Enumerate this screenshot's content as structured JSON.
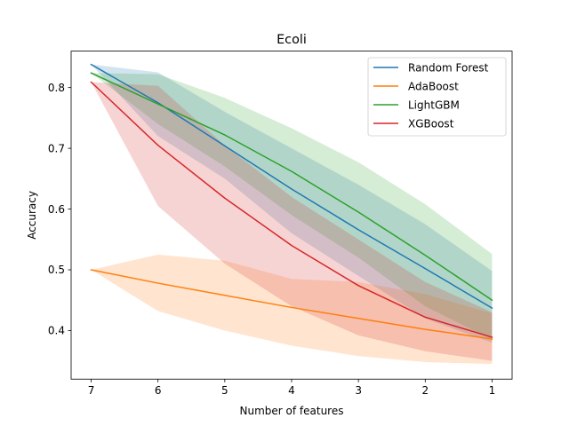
{
  "chart_data": {
    "type": "line",
    "title": "Ecoli",
    "xlabel": "Number of features",
    "ylabel": "Accuracy",
    "x": [
      7,
      6,
      5,
      4,
      3,
      2,
      1
    ],
    "x_reversed": true,
    "xticks": [
      "7",
      "6",
      "5",
      "4",
      "3",
      "2",
      "1"
    ],
    "yticks": [
      "0.4",
      "0.5",
      "0.6",
      "0.7",
      "0.8"
    ],
    "ylim": [
      0.32,
      0.86
    ],
    "grid": false,
    "legend_position": "top-right",
    "series": [
      {
        "name": "Random Forest",
        "color": "#1f77b4",
        "values": [
          0.838,
          0.775,
          0.704,
          0.633,
          0.566,
          0.502,
          0.437
        ],
        "lower": [
          0.838,
          0.72,
          0.65,
          0.56,
          0.49,
          0.42,
          0.38
        ],
        "upper": [
          0.838,
          0.825,
          0.76,
          0.7,
          0.64,
          0.575,
          0.498
        ]
      },
      {
        "name": "AdaBoost",
        "color": "#ff7f0e",
        "values": [
          0.5,
          0.478,
          0.458,
          0.438,
          0.42,
          0.402,
          0.386
        ],
        "lower": [
          0.5,
          0.432,
          0.4,
          0.375,
          0.358,
          0.348,
          0.345
        ],
        "upper": [
          0.5,
          0.525,
          0.515,
          0.485,
          0.48,
          0.46,
          0.428
        ]
      },
      {
        "name": "LightGBM",
        "color": "#2ca02c",
        "values": [
          0.824,
          0.773,
          0.722,
          0.662,
          0.595,
          0.524,
          0.45
        ],
        "lower": [
          0.824,
          0.74,
          0.67,
          0.59,
          0.52,
          0.44,
          0.385
        ],
        "upper": [
          0.824,
          0.822,
          0.783,
          0.733,
          0.677,
          0.608,
          0.526
        ]
      },
      {
        "name": "XGBoost",
        "color": "#d62728",
        "values": [
          0.809,
          0.705,
          0.618,
          0.54,
          0.474,
          0.422,
          0.389
        ],
        "lower": [
          0.809,
          0.605,
          0.51,
          0.44,
          0.392,
          0.366,
          0.35
        ],
        "upper": [
          0.809,
          0.803,
          0.705,
          0.62,
          0.55,
          0.48,
          0.43
        ]
      }
    ]
  }
}
